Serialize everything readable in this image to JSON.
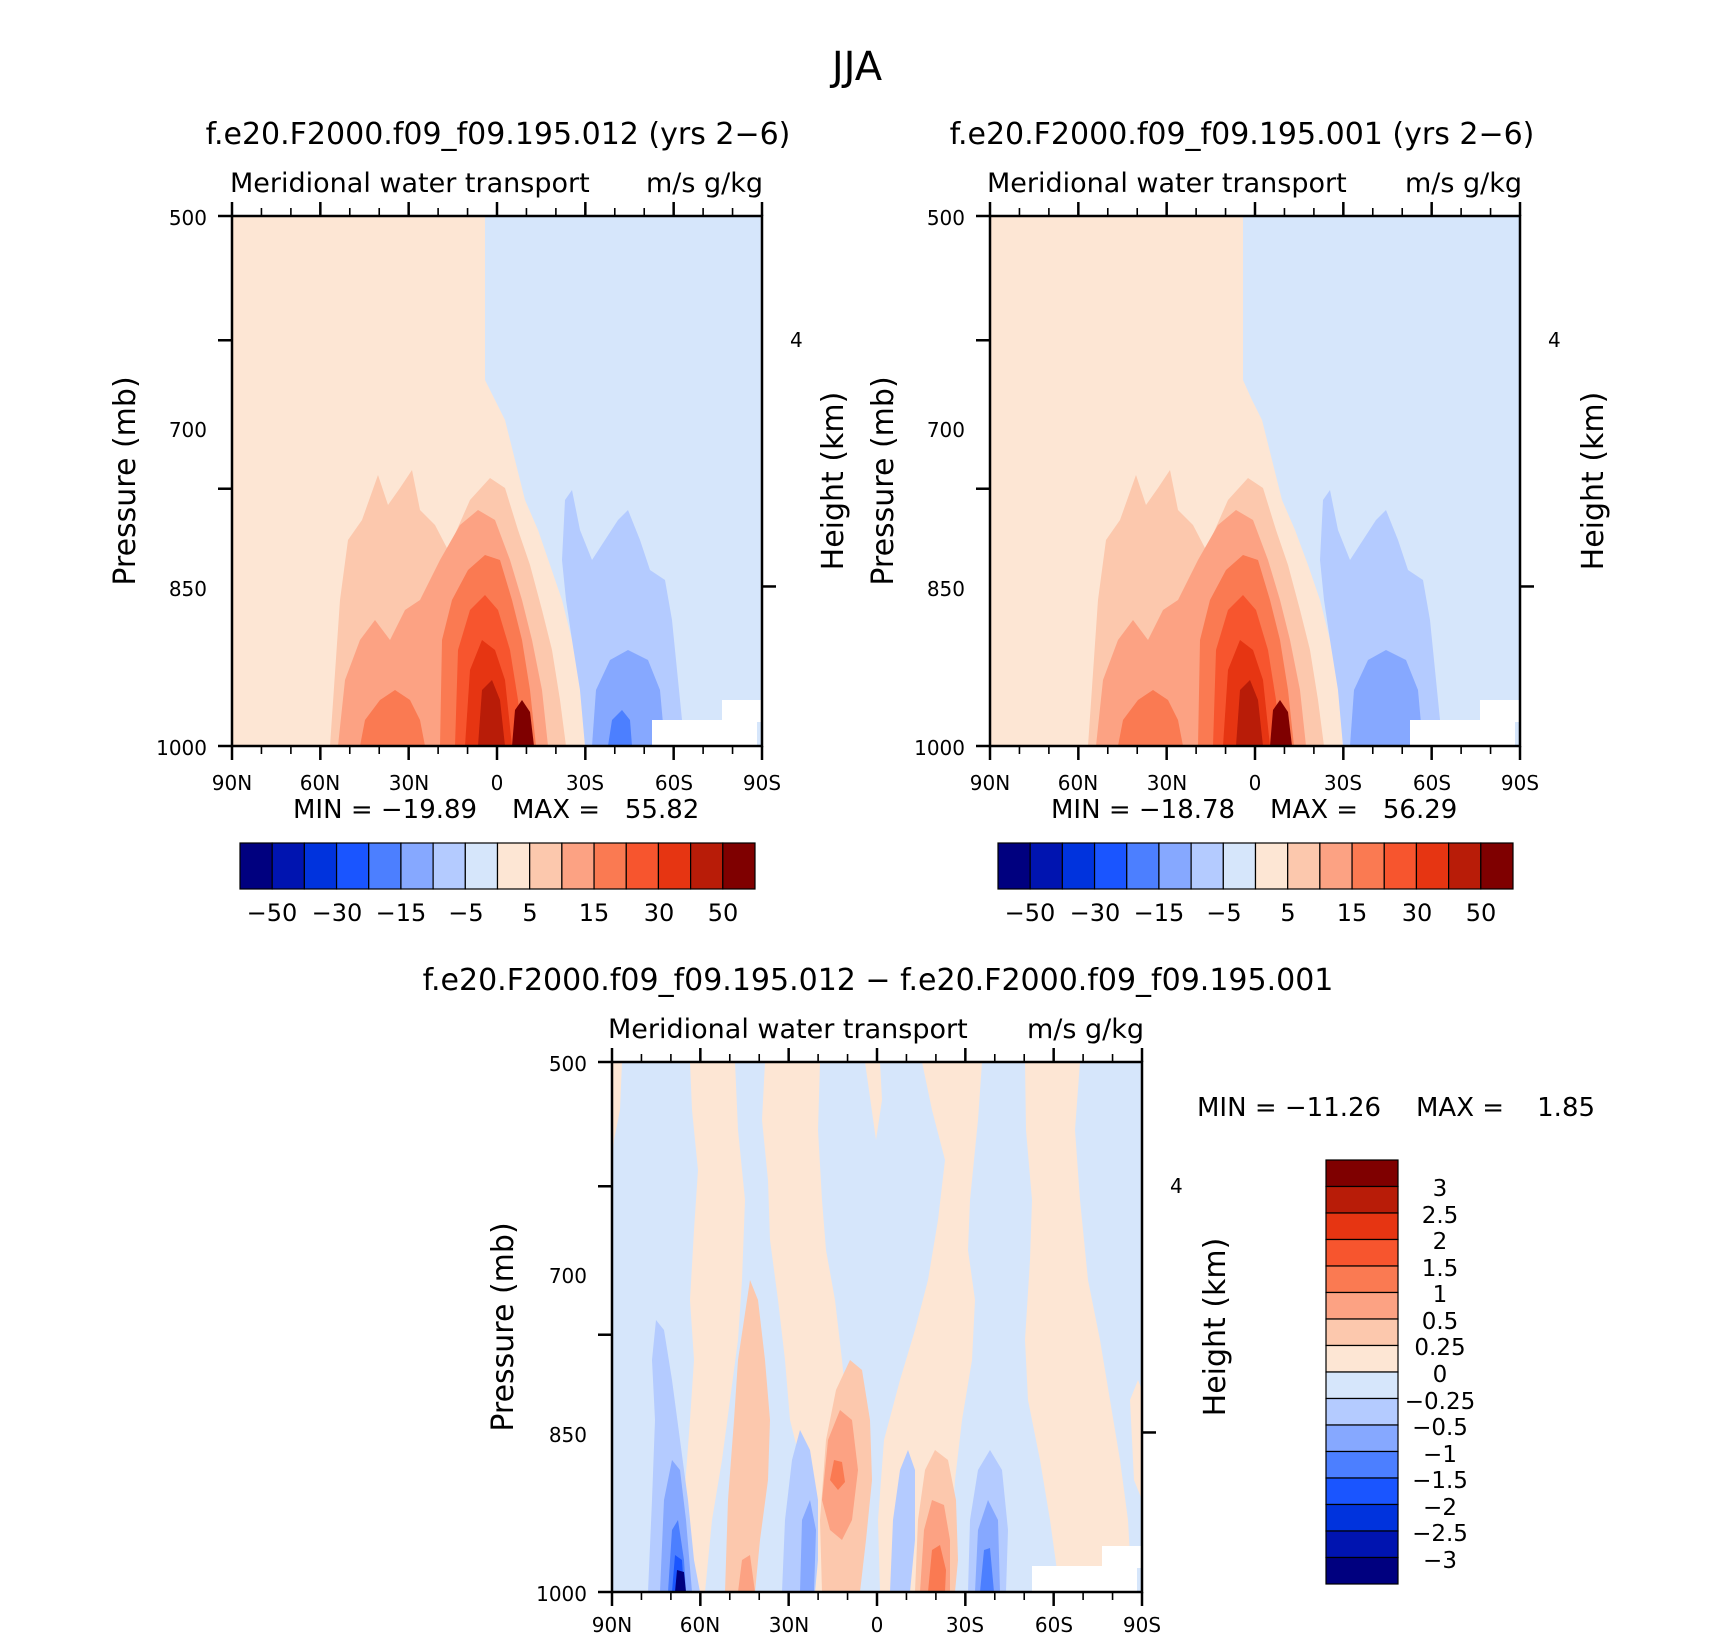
{
  "figure_title": "JJA",
  "colors": {
    "main": [
      "#00007f",
      "#0014b0",
      "#0033dd",
      "#1a55ff",
      "#4c7fff",
      "#86a8ff",
      "#b4cbff",
      "#d6e6fb",
      "#fde6d4",
      "#fcc8ad",
      "#fca283",
      "#fa7a52",
      "#f7552e",
      "#e63512",
      "#b81c08",
      "#7f0000"
    ],
    "diff": [
      "#00007f",
      "#0014b0",
      "#0033dd",
      "#1a55ff",
      "#4c7fff",
      "#86a8ff",
      "#b4cbff",
      "#d6e6fb",
      "#fde6d4",
      "#fcc8ad",
      "#fca283",
      "#fa7a52",
      "#f7552e",
      "#e63512",
      "#b81c08",
      "#7f0000"
    ]
  },
  "chart_data": [
    {
      "type": "heatmap",
      "title": "f.e20.F2000.f09_f09.195.012 (yrs 2−6)",
      "variable": "Meridional water transport",
      "units": "m/s g/kg",
      "xlabel": "",
      "ylabel": "Pressure (mb)",
      "y2label": "Height (km)",
      "x_ticks": [
        "90N",
        "60N",
        "30N",
        "0",
        "30S",
        "60S",
        "90S"
      ],
      "y_ticks": [
        "500",
        "700",
        "850",
        "1000"
      ],
      "y2_ticks": [
        "4"
      ],
      "ylim": [
        1000,
        500
      ],
      "xlim": [
        90,
        -90
      ],
      "min_label": "MIN = −19.89",
      "max_label": "MAX =   55.82",
      "min": -19.89,
      "max": 55.82,
      "colorbar_labels": [
        "−50",
        "−30",
        "−15",
        "−5",
        "5",
        "15",
        "30",
        "50"
      ],
      "levels": [
        -50,
        -40,
        -30,
        -20,
        -15,
        -10,
        -5,
        0,
        5,
        10,
        15,
        20,
        30,
        40,
        50
      ]
    },
    {
      "type": "heatmap",
      "title": "f.e20.F2000.f09_f09.195.001 (yrs 2−6)",
      "variable": "Meridional water transport",
      "units": "m/s g/kg",
      "xlabel": "",
      "ylabel": "Pressure (mb)",
      "y2label": "Height (km)",
      "x_ticks": [
        "90N",
        "60N",
        "30N",
        "0",
        "30S",
        "60S",
        "90S"
      ],
      "y_ticks": [
        "500",
        "700",
        "850",
        "1000"
      ],
      "y2_ticks": [
        "4"
      ],
      "ylim": [
        1000,
        500
      ],
      "xlim": [
        90,
        -90
      ],
      "min_label": "MIN = −18.78",
      "max_label": "MAX =   56.29",
      "min": -18.78,
      "max": 56.29,
      "colorbar_labels": [
        "−50",
        "−30",
        "−15",
        "−5",
        "5",
        "15",
        "30",
        "50"
      ],
      "levels": [
        -50,
        -40,
        -30,
        -20,
        -15,
        -10,
        -5,
        0,
        5,
        10,
        15,
        20,
        30,
        40,
        50
      ]
    },
    {
      "type": "heatmap",
      "title": "f.e20.F2000.f09_f09.195.012 − f.e20.F2000.f09_f09.195.001",
      "variable": "Meridional water transport",
      "units": "m/s g/kg",
      "xlabel": "",
      "ylabel": "Pressure (mb)",
      "y2label": "Height (km)",
      "x_ticks": [
        "90N",
        "60N",
        "30N",
        "0",
        "30S",
        "60S",
        "90S"
      ],
      "y_ticks": [
        "500",
        "700",
        "850",
        "1000"
      ],
      "y2_ticks": [
        "4"
      ],
      "ylim": [
        1000,
        500
      ],
      "xlim": [
        90,
        -90
      ],
      "min_label": "MIN = −11.26",
      "max_label": "MAX =    1.85",
      "min": -11.26,
      "max": 1.85,
      "colorbar_labels": [
        "3",
        "2.5",
        "2",
        "1.5",
        "1",
        "0.5",
        "0.25",
        "0",
        "−0.25",
        "−0.5",
        "−1",
        "−1.5",
        "−2",
        "−2.5",
        "−3"
      ],
      "levels": [
        -3,
        -2.5,
        -2,
        -1.5,
        -1,
        -0.5,
        -0.25,
        0,
        0.25,
        0.5,
        1,
        1.5,
        2,
        2.5,
        3
      ]
    }
  ]
}
